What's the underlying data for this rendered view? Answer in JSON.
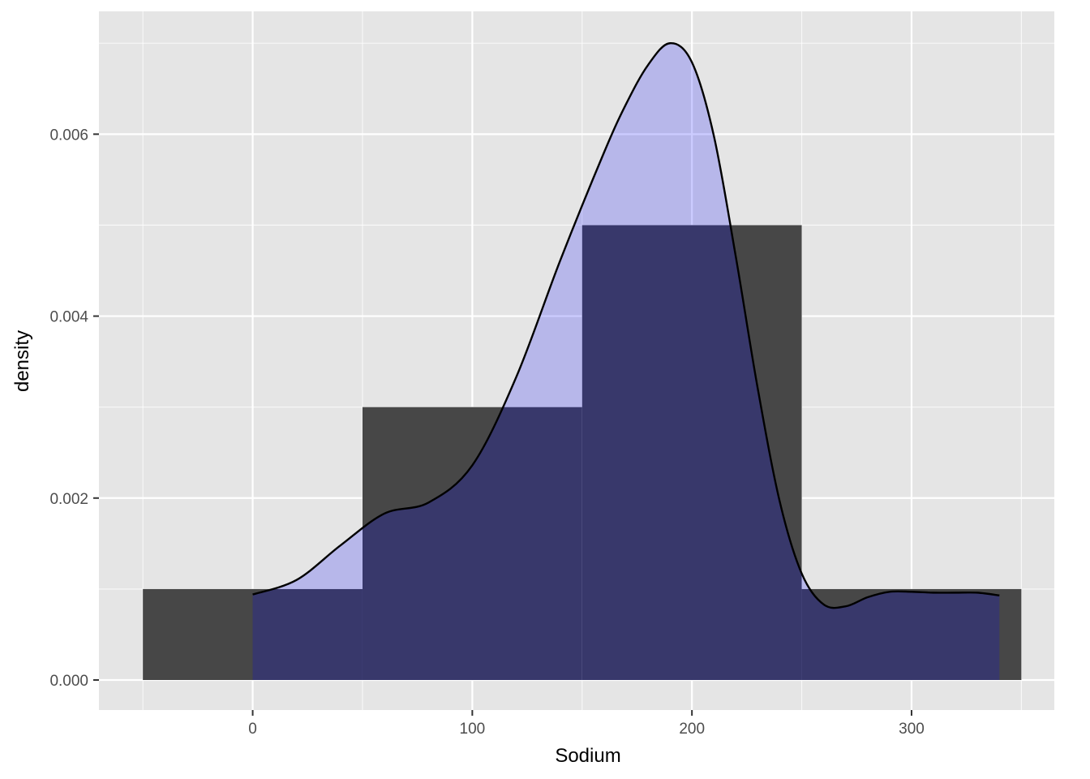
{
  "chart_data": {
    "type": "bar",
    "title": "",
    "xlabel": "Sodium",
    "ylabel": "density",
    "xlim": [
      -70,
      365
    ],
    "ylim": [
      -0.00033,
      0.00735
    ],
    "x_ticks": [
      0,
      100,
      200,
      300
    ],
    "x_tick_labels": [
      "0",
      "100",
      "200",
      "300"
    ],
    "y_ticks": [
      0.0,
      0.002,
      0.004,
      0.006
    ],
    "y_tick_labels": [
      "0.000",
      "0.002",
      "0.004",
      "0.006"
    ],
    "grid": true,
    "legend": "none",
    "histogram": {
      "bin_width": 100,
      "bins": [
        {
          "x_start": -50,
          "x_end": 50,
          "density": 0.001
        },
        {
          "x_start": 50,
          "x_end": 150,
          "density": 0.003
        },
        {
          "x_start": 150,
          "x_end": 250,
          "density": 0.005
        },
        {
          "x_start": 250,
          "x_end": 350,
          "density": 0.001
        }
      ]
    },
    "density_curve": {
      "x": [
        0,
        20,
        40,
        60,
        80,
        100,
        120,
        140,
        160,
        170,
        180,
        190,
        200,
        210,
        220,
        230,
        240,
        250,
        260,
        270,
        280,
        290,
        300,
        310,
        320,
        330,
        340
      ],
      "y": [
        0.00094,
        0.0011,
        0.00148,
        0.00183,
        0.00195,
        0.00236,
        0.00333,
        0.00461,
        0.0058,
        0.00633,
        0.00676,
        0.007,
        0.00679,
        0.00598,
        0.00465,
        0.0032,
        0.00196,
        0.00117,
        0.00083,
        0.00081,
        0.00091,
        0.00097,
        0.00097,
        0.00096,
        0.00096,
        0.00096,
        0.00093
      ]
    }
  },
  "colors": {
    "panel_background": "#e5e5e5",
    "grid": "#ffffff",
    "bar_fill": "#474747",
    "density_fill": "#0000ff",
    "density_fill_opacity": 0.2,
    "density_line": "#000000",
    "tick_text": "#4d4d4d",
    "axis_title": "#000000"
  }
}
